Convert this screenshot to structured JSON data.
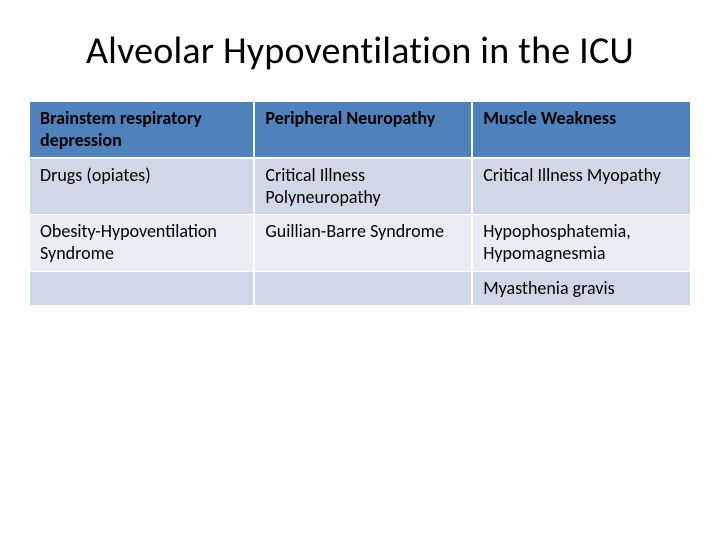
{
  "title": "Alveolar Hypoventilation in the ICU",
  "table": {
    "type": "table",
    "background_color": "#ffffff",
    "columns": [
      {
        "label": "Brainstem respiratory depression",
        "width_pct": 34
      },
      {
        "label": "Peripheral Neuropathy",
        "width_pct": 33
      },
      {
        "label": "Muscle Weakness",
        "width_pct": 33
      }
    ],
    "header_row": {
      "bg_color": "#4f81bd",
      "text_color": "#000000",
      "font_weight": 700,
      "font_size_pt": 14
    },
    "body_row_colors": [
      "#d0d8e8",
      "#e9edf4"
    ],
    "cell_border_color": "#ffffff",
    "rows": [
      [
        "Drugs (opiates)",
        "Critical Illness Polyneuropathy",
        "Critical Illness Myopathy"
      ],
      [
        "Obesity-Hypoventilation Syndrome",
        "Guillian-Barre Syndrome",
        "Hypophosphatemia, Hypomagnesmia"
      ],
      [
        "",
        "",
        "Myasthenia gravis"
      ]
    ],
    "body_font_size_pt": 14,
    "body_text_color": "#000000"
  },
  "title_style": {
    "font_size_pt": 28,
    "font_weight": 400,
    "text_color": "#000000",
    "align": "center"
  }
}
